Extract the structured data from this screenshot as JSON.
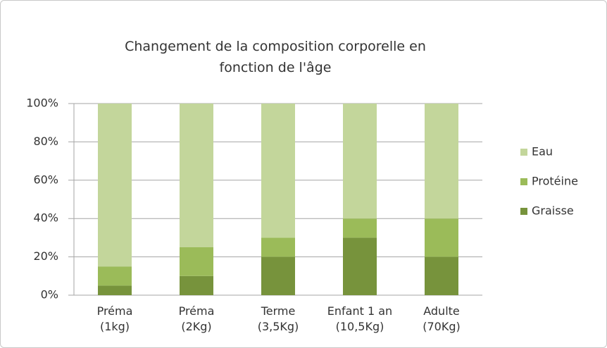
{
  "chart_data": {
    "type": "stacked_bar",
    "title": "Changement de la composition corporelle en\nfonction de l'âge",
    "categories": [
      "Préma\n(1kg)",
      "Préma\n(2Kg)",
      "Terme\n(3,5Kg)",
      "Enfant 1 an\n(10,5Kg)",
      "Adulte\n(70Kg)"
    ],
    "series": [
      {
        "name": "Graisse",
        "color": "#77933c",
        "values": [
          5,
          10,
          20,
          30,
          20
        ]
      },
      {
        "name": "Protéine",
        "color": "#9bbb59",
        "values": [
          10,
          15,
          10,
          10,
          20
        ]
      },
      {
        "name": "Eau",
        "color": "#c3d69b",
        "values": [
          85,
          75,
          70,
          60,
          60
        ]
      }
    ],
    "ylim": [
      0,
      100
    ],
    "yticks": [
      {
        "value": 0,
        "label": "0%"
      },
      {
        "value": 20,
        "label": "20%"
      },
      {
        "value": 40,
        "label": "40%"
      },
      {
        "value": 60,
        "label": "60%"
      },
      {
        "value": 80,
        "label": "80%"
      },
      {
        "value": 100,
        "label": "100%"
      }
    ],
    "grid": true,
    "legend": "right"
  }
}
